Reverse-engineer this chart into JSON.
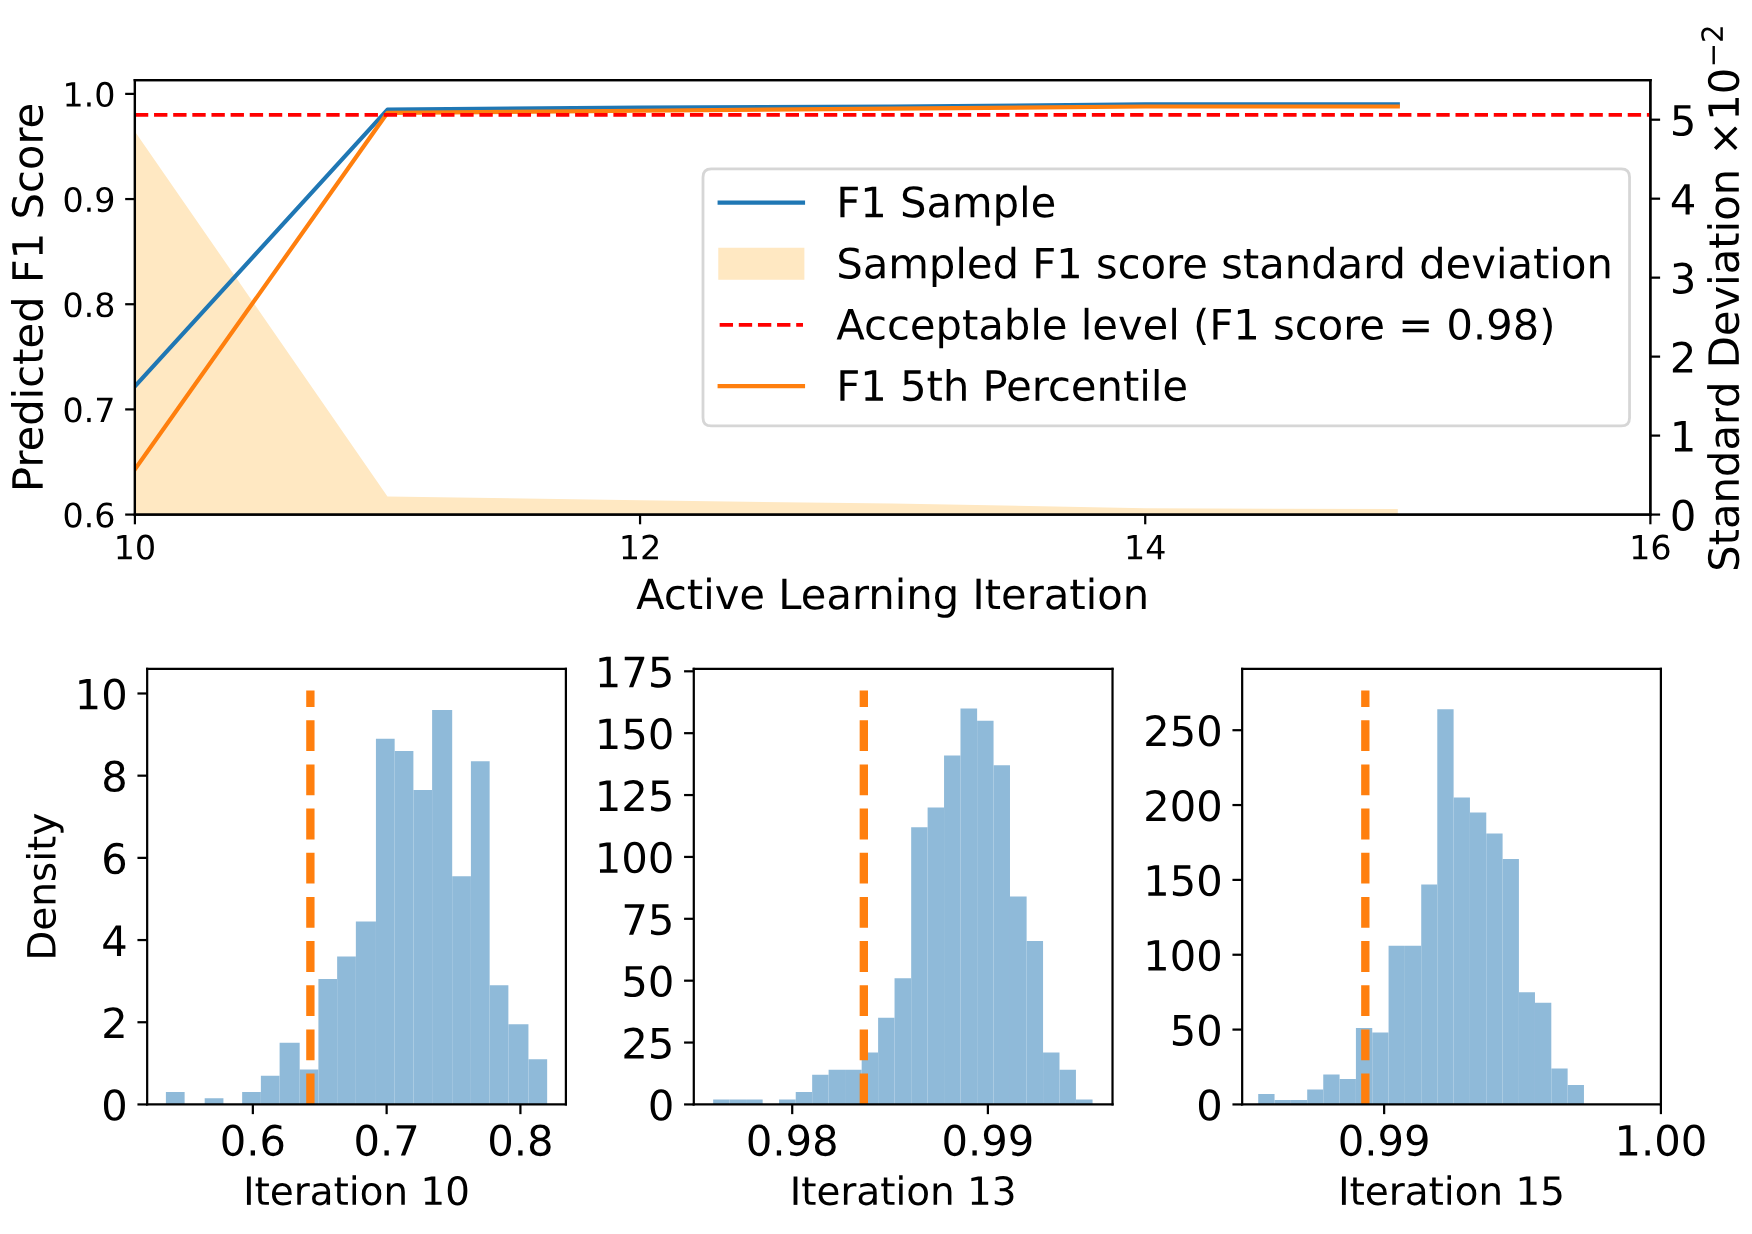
{
  "chart_data": [
    {
      "type": "line",
      "xlabel": "Active Learning Iteration",
      "ylabel": "Predicted F1 Score",
      "y2label": "Standard Deviation ×10$^{−2}$",
      "x": [
        10,
        11,
        12,
        13,
        14,
        15
      ],
      "xlim": [
        10,
        16
      ],
      "xticks": [
        10,
        12,
        14,
        16
      ],
      "ylim": [
        0.6,
        1.013
      ],
      "yticks": [
        0.6,
        0.7,
        0.8,
        0.9,
        {
          "value": 1.0,
          "label": "1.0"
        }
      ],
      "y2lim": [
        0,
        5.5
      ],
      "y2ticks": [
        0,
        1,
        2,
        3,
        4,
        5
      ],
      "series": [
        {
          "name": "F1 Sample",
          "color": "#1f77b4",
          "values": [
            0.722,
            0.985,
            0.987,
            0.988,
            0.99,
            0.99
          ]
        },
        {
          "name": "Sampled F1 score standard deviation",
          "type": "area",
          "axis": "y2",
          "color": "#ffe8c2",
          "values": [
            4.85,
            0.23,
            0.18,
            0.14,
            0.08,
            0.07
          ]
        },
        {
          "name": "F1 5th Percentile",
          "color": "#ff7f0e",
          "values": [
            0.643,
            0.982,
            0.984,
            0.986,
            0.988,
            0.988
          ]
        }
      ],
      "ref_lines": [
        {
          "axis": "y",
          "value": 0.98,
          "label": "Acceptable level (F1 score = 0.98)",
          "color": "#ff0000",
          "line_style": "dashed"
        }
      ],
      "legend": "right",
      "grid": false
    },
    {
      "type": "histogram",
      "xlabel": "Iteration 10",
      "ylabel": "Density",
      "color": "#8fbad9",
      "bins": [
        0.535,
        0.549,
        0.564,
        0.578,
        0.592,
        0.606,
        0.62,
        0.635,
        0.649,
        0.663,
        0.677,
        0.692,
        0.706,
        0.72,
        0.734,
        0.749,
        0.763,
        0.777,
        0.791,
        0.806,
        0.82
      ],
      "values": [
        0.3,
        0,
        0.15,
        0,
        0.3,
        0.7,
        1.5,
        0.85,
        3.05,
        3.6,
        4.45,
        8.9,
        8.6,
        7.65,
        9.6,
        5.55,
        8.35,
        2.9,
        1.95,
        1.1
      ],
      "xlim": [
        0.521,
        0.834
      ],
      "xticks": [
        0.6,
        0.7,
        0.8
      ],
      "ylim": [
        0,
        10.6
      ],
      "yticks": [
        0,
        2,
        4,
        6,
        8,
        10
      ],
      "ref_lines": [
        {
          "axis": "x",
          "value": 0.643,
          "color": "#ff7f0e",
          "line_style": "dashed"
        }
      ]
    },
    {
      "type": "histogram",
      "xlabel": "Iteration 13",
      "color": "#8fbad9",
      "bins": [
        0.97596,
        0.9768,
        0.97764,
        0.97849,
        0.97933,
        0.98018,
        0.98102,
        0.98186,
        0.9827,
        0.98355,
        0.98439,
        0.98523,
        0.98608,
        0.98692,
        0.98776,
        0.9886,
        0.98945,
        0.99029,
        0.99113,
        0.99198,
        0.99282,
        0.99366,
        0.9945,
        0.99535
      ],
      "values": [
        2,
        2,
        2,
        0,
        2,
        5,
        12,
        14,
        14,
        21,
        35,
        51,
        112,
        120,
        141,
        160,
        155,
        137,
        84,
        66,
        21,
        14,
        2
      ],
      "xlim": [
        0.97497,
        0.99637
      ],
      "xticks": [
        0.98,
        0.99
      ],
      "ylim": [
        0,
        176
      ],
      "yticks": [
        0,
        25,
        50,
        75,
        100,
        125,
        150,
        175
      ],
      "ref_lines": [
        {
          "axis": "x",
          "value": 0.98366,
          "color": "#ff7f0e",
          "line_style": "dashed"
        }
      ]
    },
    {
      "type": "histogram",
      "xlabel": "Iteration 15",
      "color": "#8fbad9",
      "bins": [
        0.98545,
        0.98604,
        0.98663,
        0.98722,
        0.9878,
        0.98839,
        0.98898,
        0.98957,
        0.99016,
        0.99075,
        0.99134,
        0.99192,
        0.99251,
        0.9931,
        0.99369,
        0.99428,
        0.99487,
        0.99545,
        0.99604,
        0.99663,
        0.99722
      ],
      "values": [
        7,
        3,
        3,
        10,
        20,
        17,
        51,
        48,
        106,
        106,
        147,
        264,
        205,
        195,
        181,
        164,
        75,
        68,
        24,
        13
      ],
      "xlim": [
        0.98487,
        1.0
      ],
      "xticks": [
        0.99,
        {
          "value": 1.0,
          "label": "1.00"
        }
      ],
      "ylim": [
        0,
        291
      ],
      "yticks": [
        0,
        50,
        100,
        150,
        200,
        250
      ],
      "ref_lines": [
        {
          "axis": "x",
          "value": 0.98932,
          "color": "#ff7f0e",
          "line_style": "dashed"
        }
      ]
    }
  ]
}
